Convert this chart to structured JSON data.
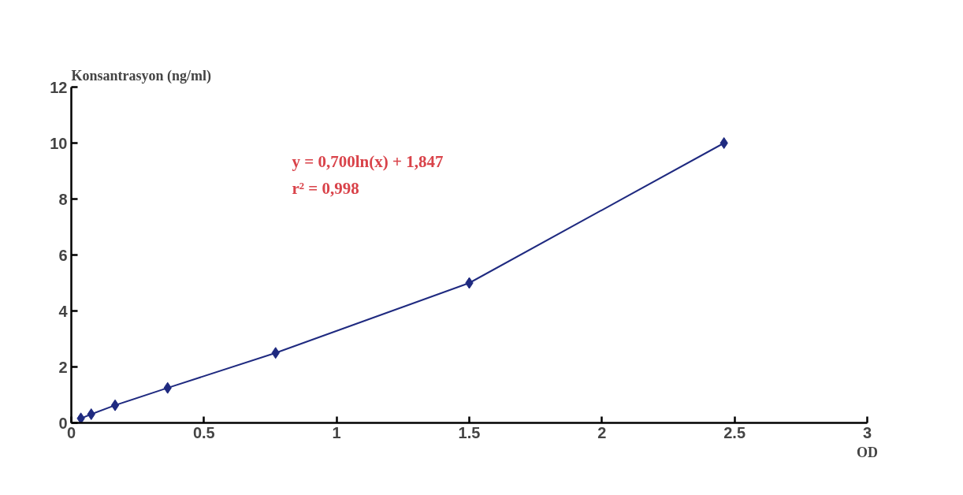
{
  "chart_data": {
    "type": "line",
    "xlabel": "OD",
    "ylabel": "Konsantrasyon (ng/ml)",
    "x": [
      0.036,
      0.075,
      0.165,
      0.363,
      0.77,
      1.5,
      2.46
    ],
    "series": [
      {
        "color": "#1f2a80",
        "values": [
          0.16,
          0.31,
          0.63,
          1.25,
          2.5,
          5,
          10
        ]
      }
    ],
    "xlim": [
      0,
      3
    ],
    "ylim": [
      0,
      12
    ],
    "xticks": [
      0,
      {
        "value": 0.5,
        "label": "0.5"
      },
      1,
      {
        "value": 1.5,
        "label": "1.5"
      },
      2,
      {
        "value": 2.5,
        "label": "2.5"
      },
      3
    ],
    "yticks": [
      0,
      2,
      4,
      6,
      8,
      10,
      12
    ],
    "annotations": [
      "y = 0,700ln(x) + 1,847",
      "r² = 0,998"
    ],
    "marker": "diamond",
    "line_style": "solid",
    "grid": false
  }
}
